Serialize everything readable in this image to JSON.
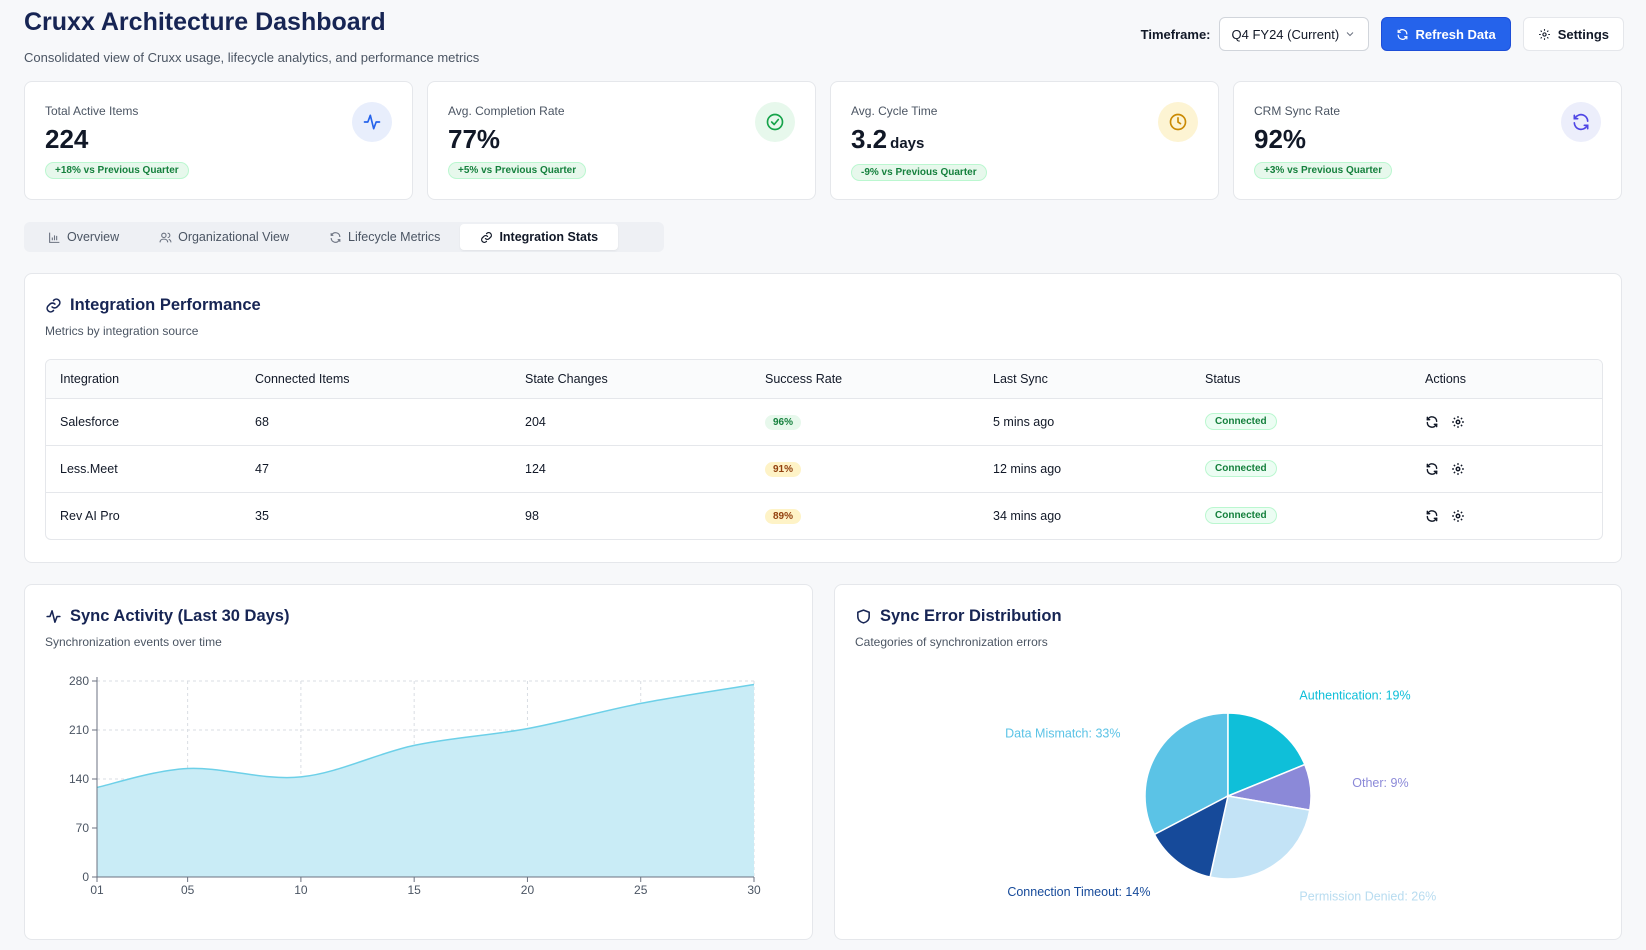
{
  "header": {
    "title": "Cruxx Architecture Dashboard",
    "subtitle": "Consolidated view of Cruxx usage, lifecycle analytics, and performance metrics",
    "timeframe_label": "Timeframe:",
    "timeframe_value": "Q4 FY24 (Current)",
    "refresh_label": "Refresh Data",
    "settings_label": "Settings"
  },
  "kpis": [
    {
      "label": "Total Active Items",
      "value": "224",
      "unit": "",
      "badge": "+18% vs Previous Quarter",
      "icon": "activity-icon",
      "icon_color": "#2563eb",
      "icon_bg": "#e8eefc"
    },
    {
      "label": "Avg. Completion Rate",
      "value": "77%",
      "unit": "",
      "badge": "+5% vs Previous Quarter",
      "icon": "check-circle-icon",
      "icon_color": "#16a34a",
      "icon_bg": "#e7f8ec"
    },
    {
      "label": "Avg. Cycle Time",
      "value": "3.2",
      "unit": "days",
      "badge": "-9% vs Previous Quarter",
      "icon": "clock-icon",
      "icon_color": "#ca8a04",
      "icon_bg": "#fdf4d3"
    },
    {
      "label": "CRM Sync Rate",
      "value": "92%",
      "unit": "",
      "badge": "+3% vs Previous Quarter",
      "icon": "refresh-icon",
      "icon_color": "#4f46e5",
      "icon_bg": "#eceefb"
    }
  ],
  "tabs": [
    {
      "label": "Overview",
      "icon": "bar-chart-icon",
      "active": false
    },
    {
      "label": "Organizational View",
      "icon": "users-icon",
      "active": false
    },
    {
      "label": "Lifecycle Metrics",
      "icon": "refresh-icon",
      "active": false
    },
    {
      "label": "Integration Stats",
      "icon": "link-icon",
      "active": true
    }
  ],
  "integration": {
    "title": "Integration Performance",
    "subtitle": "Metrics by integration source",
    "columns": [
      "Integration",
      "Connected Items",
      "State Changes",
      "Success Rate",
      "Last Sync",
      "Status",
      "Actions"
    ],
    "rows": [
      {
        "name": "Salesforce",
        "connected": "68",
        "changes": "204",
        "rate": "96%",
        "rate_level": "green",
        "last_sync": "5 mins ago",
        "status": "Connected"
      },
      {
        "name": "Less.Meet",
        "connected": "47",
        "changes": "124",
        "rate": "91%",
        "rate_level": "amber",
        "last_sync": "12 mins ago",
        "status": "Connected"
      },
      {
        "name": "Rev AI Pro",
        "connected": "35",
        "changes": "98",
        "rate": "89%",
        "rate_level": "amber",
        "last_sync": "34 mins ago",
        "status": "Connected"
      }
    ]
  },
  "sync_activity": {
    "title": "Sync Activity (Last 30 Days)",
    "subtitle": "Synchronization events over time"
  },
  "sync_errors": {
    "title": "Sync Error Distribution",
    "subtitle": "Categories of synchronization errors"
  },
  "chart_data": [
    {
      "type": "area",
      "title": "Sync Activity (Last 30 Days)",
      "x": [
        1,
        5,
        10,
        15,
        20,
        25,
        30
      ],
      "x_tick_labels": [
        "01",
        "05",
        "10",
        "15",
        "20",
        "25",
        "30"
      ],
      "values": [
        128,
        155,
        143,
        188,
        212,
        248,
        275
      ],
      "ylim": [
        0,
        280
      ],
      "y_ticks": [
        0,
        70,
        140,
        210,
        280
      ],
      "grid": true,
      "color": "#6dd0e8",
      "fill": "#c9ecf6"
    },
    {
      "type": "pie",
      "title": "Sync Error Distribution",
      "slices": [
        {
          "label": "Data Mismatch: 33%",
          "value": 33,
          "color": "#5bc3e6",
          "label_color": "#5bc3e6"
        },
        {
          "label": "Authentication: 19%",
          "value": 19,
          "color": "#0fbfd9",
          "label_color": "#0fbfd9"
        },
        {
          "label": "Other: 9%",
          "value": 9,
          "color": "#8b89d8",
          "label_color": "#8b89d8"
        },
        {
          "label": "Permission Denied: 26%",
          "value": 26,
          "color": "#c3e3f6",
          "label_color": "#b8dcf0"
        },
        {
          "label": "Connection Timeout: 14%",
          "value": 14,
          "color": "#164a9a",
          "label_color": "#164a9a"
        }
      ]
    }
  ]
}
